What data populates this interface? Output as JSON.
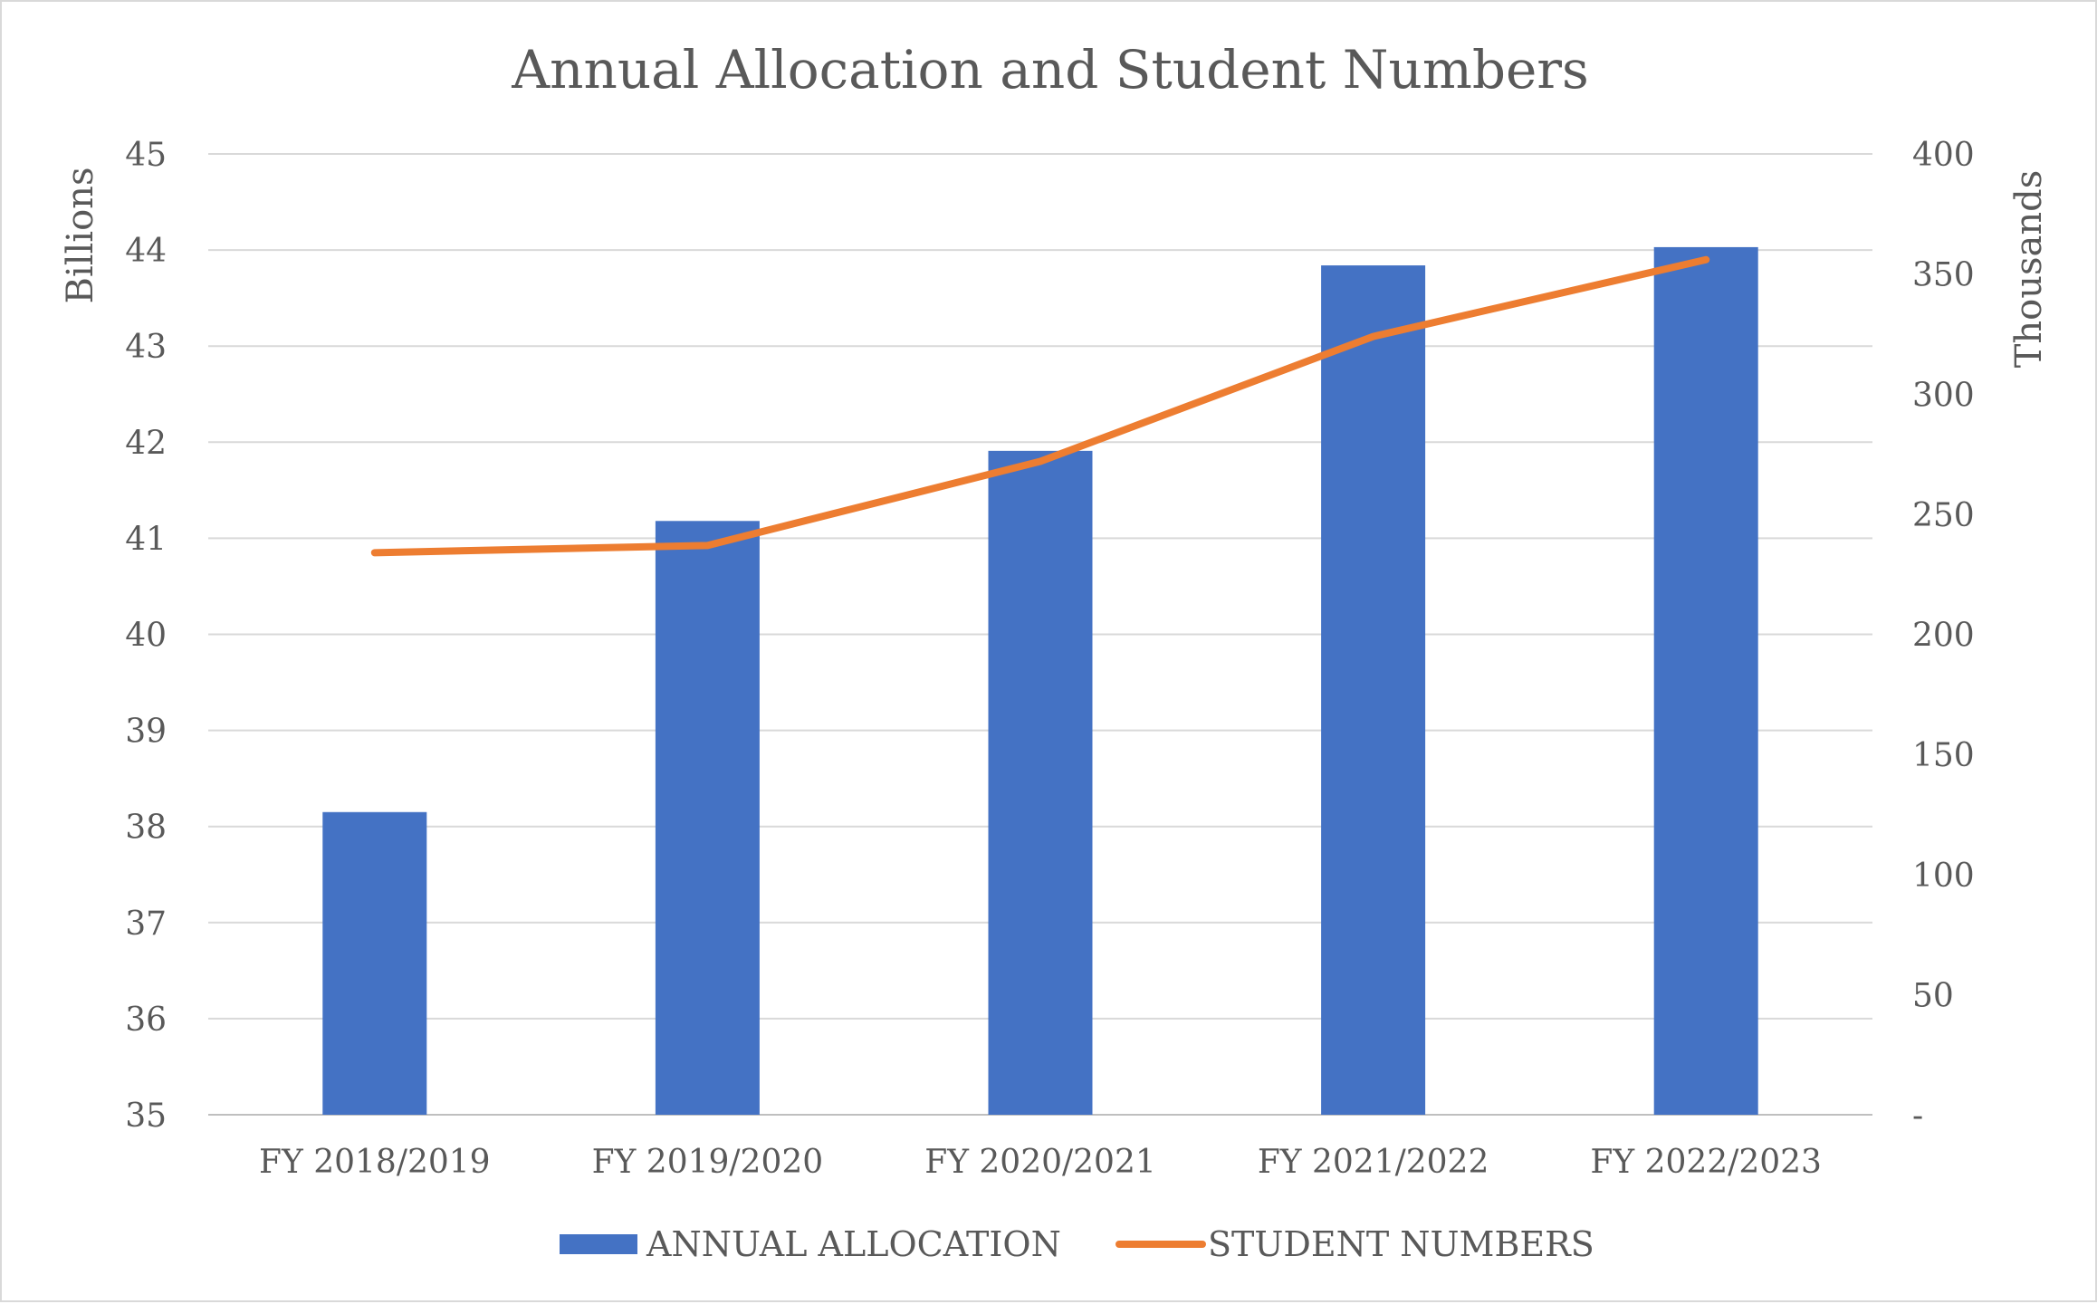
{
  "chart_data": {
    "type": "bar+line",
    "title": "Annual Allocation and Student Numbers",
    "categories": [
      "FY 2018/2019",
      "FY 2019/2020",
      "FY 2020/2021",
      "FY 2021/2022",
      "FY 2022/2023"
    ],
    "series": [
      {
        "name": "ANNUAL ALLOCATION",
        "type": "bar",
        "axis": "left",
        "color": "#4472C4",
        "values": [
          38.15,
          41.18,
          41.91,
          43.84,
          44.03
        ]
      },
      {
        "name": "STUDENT NUMBERS",
        "type": "line",
        "axis": "right",
        "color": "#ED7D31",
        "values": [
          234,
          237,
          272,
          324,
          356
        ]
      }
    ],
    "y_left": {
      "label": "Billions",
      "min": 35,
      "max": 45,
      "step": 1,
      "ticks": [
        "35",
        "36",
        "37",
        "38",
        "39",
        "40",
        "41",
        "42",
        "43",
        "44",
        "45"
      ]
    },
    "y_right": {
      "label": "Thousands",
      "min": 0,
      "max": 400,
      "step": 50,
      "ticks": [
        "-",
        "50",
        "100",
        "150",
        "200",
        "250",
        "300",
        "350",
        "400"
      ]
    },
    "grid": true,
    "legend_position": "bottom"
  }
}
